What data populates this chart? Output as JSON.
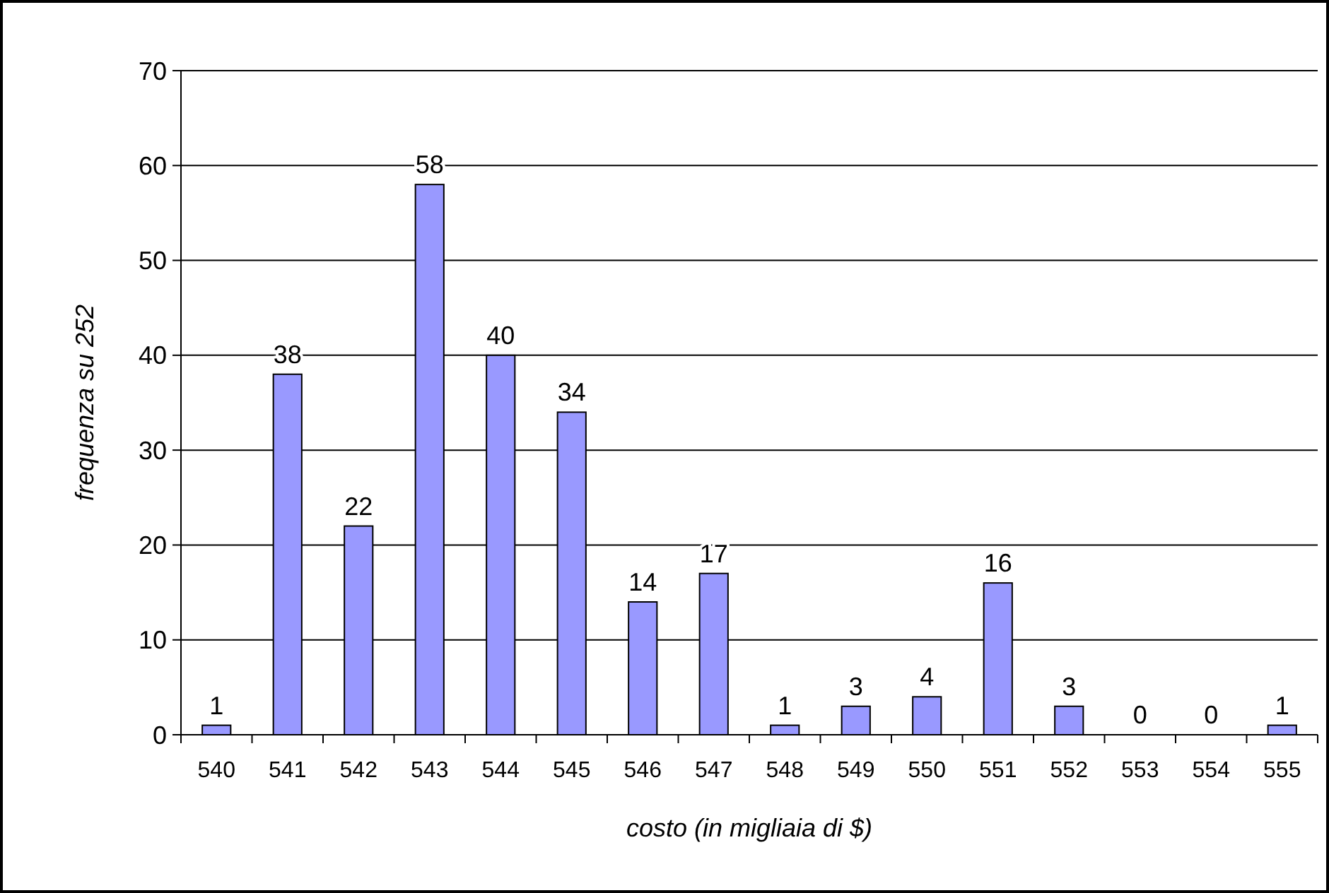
{
  "chart_data": {
    "type": "bar",
    "xlabel": "costo (in migliaia di $)",
    "ylabel": "frequenza su 252",
    "categories": [
      "540",
      "541",
      "542",
      "543",
      "544",
      "545",
      "546",
      "547",
      "548",
      "549",
      "550",
      "551",
      "552",
      "553",
      "554",
      "555"
    ],
    "values": [
      1,
      38,
      22,
      58,
      40,
      34,
      14,
      17,
      1,
      3,
      4,
      16,
      3,
      0,
      0,
      1
    ],
    "color": "#9999ff",
    "ylim": [
      0,
      70
    ],
    "yticks": [
      0,
      10,
      20,
      30,
      40,
      50,
      60,
      70
    ],
    "grid": "y",
    "data_labels": true
  }
}
